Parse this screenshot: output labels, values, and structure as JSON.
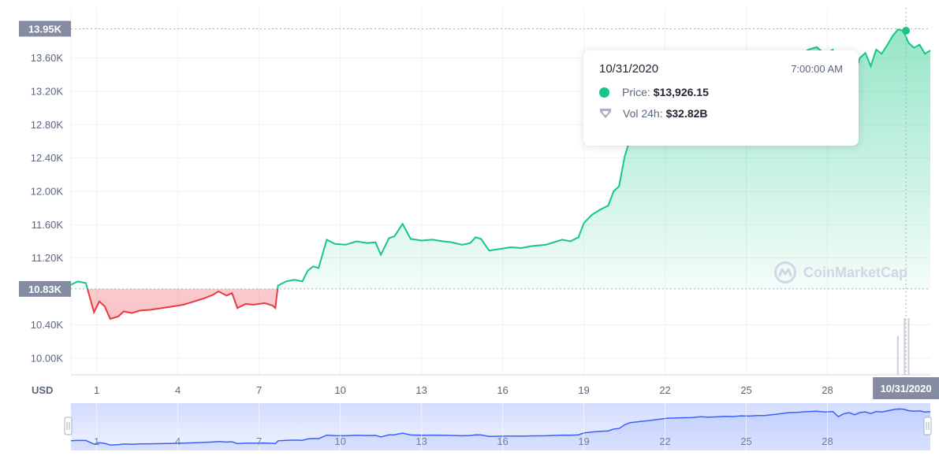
{
  "chart_data": {
    "type": "area",
    "currency_label": "USD",
    "y_axis": {
      "ticks": [
        "13.60K",
        "13.20K",
        "12.80K",
        "12.40K",
        "12.00K",
        "11.60K",
        "11.20K",
        "10.40K",
        "10.00K"
      ],
      "tick_values": [
        13600,
        13200,
        12800,
        12400,
        12000,
        11600,
        11200,
        10400,
        10000
      ],
      "ylim": [
        9800,
        14200
      ]
    },
    "x_axis": {
      "ticks": [
        "1",
        "4",
        "7",
        "10",
        "13",
        "16",
        "19",
        "22",
        "25",
        "28"
      ],
      "tick_values": [
        1,
        4,
        7,
        10,
        13,
        16,
        19,
        22,
        25,
        28
      ],
      "xlim": [
        0.05,
        31.8
      ]
    },
    "reference_lines": [
      {
        "label": "13.95K",
        "value": 13950
      },
      {
        "label": "10.83K",
        "value": 10830
      }
    ],
    "baseline_value": 10830,
    "colors": {
      "up": "#16c784",
      "down": "#ea3943",
      "volume": "#a6b0c3",
      "navigator": "#3861fb"
    },
    "series": [
      {
        "x": [
          0.05,
          0.3,
          0.6,
          0.9,
          1.1,
          1.3,
          1.5,
          1.8,
          2.0,
          2.3,
          2.6,
          3.0,
          3.4,
          3.8,
          4.2,
          4.6,
          5.0,
          5.3,
          5.5,
          5.8,
          6.0,
          6.2,
          6.5,
          6.8,
          7.2,
          7.5,
          7.6,
          7.7,
          8.0,
          8.3,
          8.6,
          8.8,
          9.0,
          9.2,
          9.5,
          9.8,
          10.2,
          10.6,
          11.0,
          11.3,
          11.5,
          11.8,
          12.0,
          12.3,
          12.6,
          13.0,
          13.4,
          13.8,
          14.1,
          14.5,
          14.8,
          15.0,
          15.2,
          15.5,
          15.9,
          16.3,
          16.7,
          17.0,
          17.3,
          17.6,
          17.9,
          18.2,
          18.5,
          18.8,
          19.0,
          19.3,
          19.6,
          19.9,
          20.1,
          20.3,
          20.5,
          20.7,
          20.9,
          21.2,
          21.5,
          21.8,
          22.1,
          22.4,
          22.7,
          23.0,
          23.3,
          23.6,
          23.9,
          24.2,
          24.5,
          24.8,
          25.1,
          25.4,
          25.7,
          26.0,
          26.3,
          26.6,
          26.9,
          27.1,
          27.3,
          27.6,
          27.9,
          28.2,
          28.4,
          28.6,
          28.8,
          29.0,
          29.2,
          29.4,
          29.6,
          29.8,
          30.0,
          30.2,
          30.4,
          30.6,
          30.8,
          31.0,
          31.2,
          31.4,
          31.6,
          31.8
        ],
        "values": [
          10880,
          10920,
          10900,
          10550,
          10680,
          10620,
          10470,
          10500,
          10560,
          10540,
          10570,
          10580,
          10600,
          10620,
          10640,
          10680,
          10720,
          10760,
          10800,
          10750,
          10780,
          10600,
          10650,
          10640,
          10660,
          10630,
          10600,
          10870,
          10920,
          10940,
          10920,
          11050,
          11100,
          11080,
          11420,
          11370,
          11360,
          11400,
          11380,
          11390,
          11240,
          11440,
          11460,
          11610,
          11430,
          11410,
          11420,
          11400,
          11390,
          11360,
          11380,
          11450,
          11430,
          11290,
          11310,
          11330,
          11320,
          11340,
          11350,
          11360,
          11390,
          11420,
          11400,
          11450,
          11620,
          11720,
          11780,
          11830,
          12000,
          12060,
          12410,
          12620,
          12680,
          12760,
          12850,
          12960,
          13050,
          13080,
          13100,
          13120,
          13200,
          13150,
          13180,
          13230,
          13210,
          13280,
          13260,
          13300,
          13320,
          13400,
          13500,
          13600,
          13620,
          13660,
          13700,
          13730,
          13650,
          13700,
          13200,
          13480,
          13590,
          13390,
          13600,
          13660,
          13500,
          13700,
          13650,
          13750,
          13860,
          13940,
          13926,
          13780,
          13720,
          13760,
          13650,
          13690
        ]
      }
    ],
    "volume_bars": [
      {
        "x": 30.6,
        "h": 0.55
      },
      {
        "x": 30.85,
        "h": 0.8
      },
      {
        "x": 31.0,
        "h": 0.8
      }
    ],
    "navigator": {
      "ticks": [
        "1",
        "4",
        "7",
        "10",
        "13",
        "16",
        "19",
        "22",
        "25",
        "28"
      ]
    },
    "crosshair": {
      "x": 30.9,
      "value": 13926.15,
      "label": "10/31/2020"
    },
    "tooltip": {
      "date": "10/31/2020",
      "time": "7:00:00 AM",
      "price_label": "Price:",
      "price_value": "$13,926.15",
      "vol_label": "Vol 24h:",
      "vol_value": "$32.82B"
    },
    "watermark": "CoinMarketCap"
  }
}
